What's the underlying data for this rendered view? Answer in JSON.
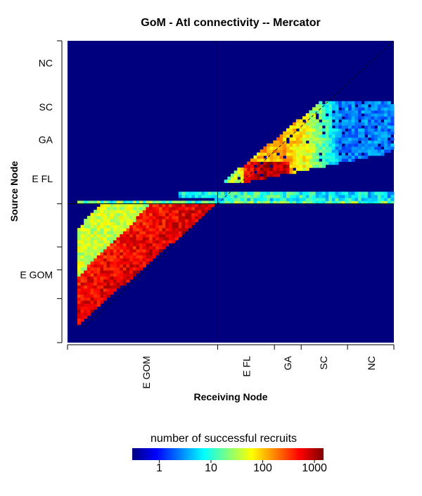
{
  "chart_data": {
    "type": "heatmap",
    "title": "GoM - Atl connectivity -- Mercator",
    "xlabel": "Receiving Node",
    "ylabel": "Source Node",
    "x_tick_labels": [
      "E GOM",
      "E FL",
      "GA",
      "SC",
      "NC"
    ],
    "y_tick_labels": [
      "NC",
      "SC",
      "GA",
      "E FL",
      "E GOM"
    ],
    "grid_size": 100,
    "region_boundary_index": 46,
    "colorbar": {
      "title": "number of successful recruits",
      "scale": "log",
      "range": [
        0.3,
        1500
      ],
      "ticks": [
        1,
        10,
        100,
        1000
      ],
      "tick_labels": [
        "1",
        "10",
        "100",
        "1000"
      ],
      "colors": [
        "#00007F",
        "#0000FF",
        "#007FFF",
        "#00FFFF",
        "#7FFF7F",
        "#FFFF00",
        "#FF7F00",
        "#FF0000",
        "#7F0000"
      ]
    },
    "background_color": "#00007F"
  }
}
